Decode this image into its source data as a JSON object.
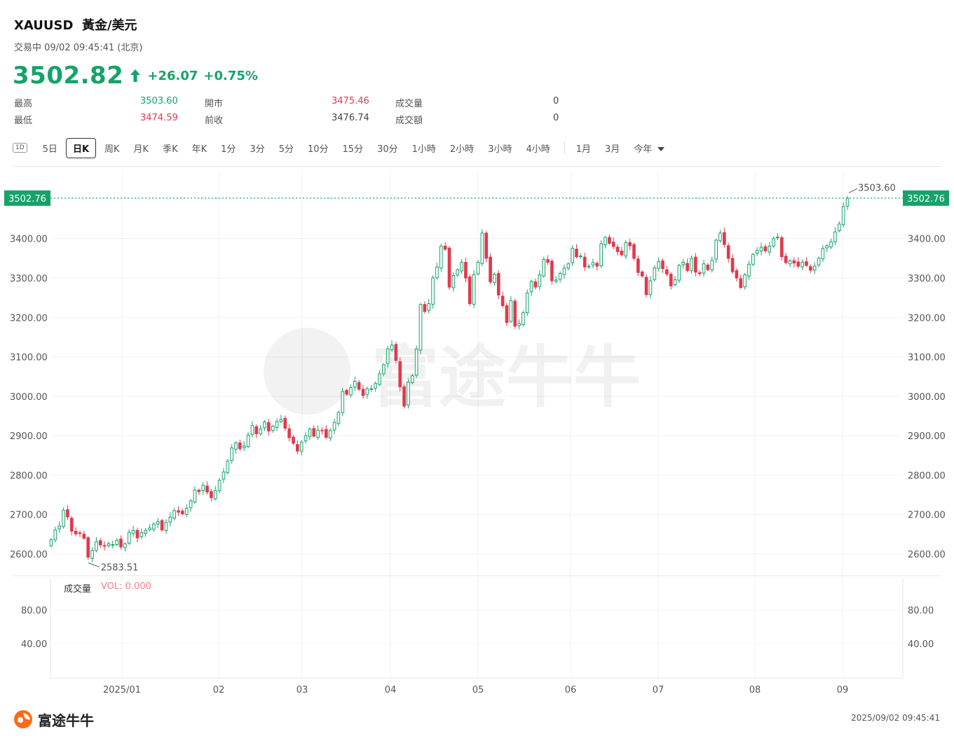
{
  "header": {
    "symbol": "XAUUSD",
    "name": "黃金/美元",
    "status": "交易中 09/02 09:45:41 (北京)",
    "price": "3502.82",
    "change": "+26.07",
    "change_pct": "+0.75%"
  },
  "stats": {
    "high_label": "最高",
    "high": "3503.60",
    "low_label": "最低",
    "low": "3474.59",
    "open_label": "開市",
    "open": "3475.46",
    "prev_label": "前收",
    "prev": "3476.74",
    "volume_label": "成交量",
    "volume": "0",
    "turnover_label": "成交額",
    "turnover": "0"
  },
  "toolbar": {
    "icon_label": "1D",
    "tabs": [
      "5日",
      "日K",
      "周K",
      "月K",
      "季K",
      "年K",
      "1分",
      "3分",
      "5分",
      "10分",
      "15分",
      "30分",
      "1小時",
      "2小時",
      "3小時",
      "4小時"
    ],
    "tabs2": [
      "1月",
      "3月",
      "今年"
    ],
    "active": "日K"
  },
  "chart_data": {
    "type": "candlestick",
    "current_price_label": "3502.76",
    "y_ticks": [
      2600,
      2700,
      2800,
      2900,
      3000,
      3100,
      3200,
      3300,
      3400
    ],
    "y_tick_labels": [
      "2600.00",
      "2700.00",
      "2800.00",
      "2900.00",
      "3000.00",
      "3100.00",
      "3200.00",
      "3300.00",
      "3400.00"
    ],
    "ylim": [
      2545,
      3570
    ],
    "x_labels": [
      "2025/01",
      "02",
      "03",
      "04",
      "05",
      "06",
      "07",
      "08",
      "09"
    ],
    "high_annotation": "3503.60",
    "low_annotation": "2583.51",
    "volume_label": "成交量",
    "volume_value": "VOL: 0.000",
    "volume_ticks": [
      "80.00",
      "40.00"
    ],
    "series_close": [
      2636,
      2661,
      2671,
      2711,
      2694,
      2658,
      2651,
      2652,
      2640,
      2592,
      2609,
      2631,
      2623,
      2620,
      2626,
      2624,
      2635,
      2618,
      2626,
      2655,
      2660,
      2641,
      2654,
      2660,
      2666,
      2676,
      2682,
      2661,
      2680,
      2694,
      2710,
      2706,
      2702,
      2716,
      2735,
      2762,
      2758,
      2774,
      2757,
      2743,
      2761,
      2787,
      2808,
      2836,
      2869,
      2882,
      2867,
      2874,
      2902,
      2926,
      2905,
      2917,
      2935,
      2912,
      2924,
      2936,
      2941,
      2919,
      2895,
      2881,
      2861,
      2884,
      2900,
      2917,
      2899,
      2914,
      2913,
      2896,
      2913,
      2934,
      2959,
      3012,
      3005,
      3022,
      3038,
      3018,
      3002,
      3019,
      3019,
      3033,
      3057,
      3080,
      3120,
      3130,
      3091,
      3024,
      2975,
      3036,
      3052,
      3120,
      3233,
      3215,
      3235,
      3300,
      3328,
      3381,
      3373,
      3277,
      3306,
      3321,
      3340,
      3300,
      3235,
      3309,
      3340,
      3414,
      3350,
      3290,
      3310,
      3257,
      3230,
      3187,
      3243,
      3178,
      3185,
      3212,
      3262,
      3292,
      3277,
      3308,
      3347,
      3340,
      3293,
      3295,
      3312,
      3325,
      3336,
      3375,
      3354,
      3356,
      3328,
      3330,
      3339,
      3330,
      3387,
      3403,
      3388,
      3380,
      3367,
      3359,
      3390,
      3382,
      3350,
      3314,
      3305,
      3258,
      3293,
      3326,
      3342,
      3324,
      3310,
      3280,
      3296,
      3332,
      3340,
      3319,
      3350,
      3315,
      3311,
      3336,
      3321,
      3345,
      3396,
      3414,
      3385,
      3350,
      3316,
      3300,
      3276,
      3308,
      3335,
      3360,
      3370,
      3378,
      3369,
      3381,
      3400,
      3404,
      3354,
      3339,
      3344,
      3338,
      3330,
      3340,
      3332,
      3320,
      3330,
      3350,
      3375,
      3382,
      3392,
      3417,
      3437,
      3481,
      3502
    ]
  },
  "footer": {
    "brand": "富途牛牛",
    "timestamp": "2025/09/02 09:45:41"
  }
}
